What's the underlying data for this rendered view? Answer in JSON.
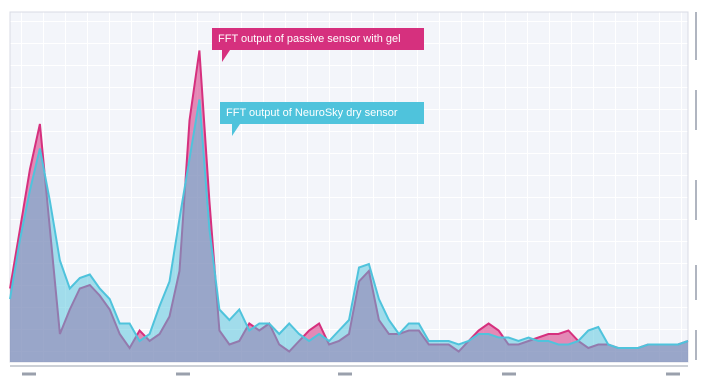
{
  "chart_data": {
    "type": "area",
    "categories": [
      null,
      null,
      null,
      null,
      null,
      null,
      null,
      null,
      null,
      null,
      null,
      null,
      null,
      null,
      null,
      null,
      null,
      null,
      null,
      null,
      null,
      null,
      null,
      null,
      null,
      null,
      null,
      null,
      null,
      null,
      null,
      null,
      null,
      null,
      null,
      null,
      null,
      null,
      null,
      null,
      null,
      null,
      null,
      null,
      null,
      null,
      null,
      null,
      null,
      null,
      null,
      null,
      null,
      null,
      null,
      null,
      null,
      null,
      null,
      null,
      null,
      null,
      null,
      null,
      null,
      null,
      null,
      null,
      null
    ],
    "series": [
      {
        "name": "FFT output of passive sensor with gel",
        "color": "#d6307e",
        "values": [
          21,
          38,
          55,
          68,
          38,
          8,
          15,
          21,
          22,
          19,
          15,
          8,
          4,
          9,
          6,
          8,
          13,
          26,
          69,
          89,
          46,
          9,
          5,
          6,
          11,
          9,
          11,
          5,
          3,
          6,
          9,
          11,
          5,
          6,
          8,
          23,
          26,
          12,
          8,
          8,
          9,
          9,
          5,
          5,
          5,
          3,
          6,
          9,
          11,
          9,
          5,
          5,
          6,
          7,
          8,
          8,
          9,
          6,
          4,
          5,
          5,
          4,
          4,
          4,
          5,
          5,
          5,
          5,
          6
        ]
      },
      {
        "name": "FFT output of NeuroSky dry sensor",
        "color": "#4fc3dc",
        "values": [
          18,
          35,
          49,
          61,
          46,
          29,
          21,
          24,
          25,
          21,
          18,
          11,
          11,
          6,
          8,
          16,
          23,
          41,
          58,
          75,
          38,
          15,
          12,
          15,
          9,
          11,
          11,
          8,
          11,
          8,
          6,
          8,
          6,
          9,
          12,
          27,
          28,
          18,
          12,
          8,
          11,
          11,
          6,
          6,
          6,
          5,
          6,
          8,
          8,
          7,
          7,
          6,
          7,
          6,
          6,
          5,
          5,
          6,
          9,
          10,
          5,
          4,
          4,
          4,
          5,
          5,
          5,
          5,
          6
        ]
      }
    ],
    "ylim": [
      0,
      100
    ],
    "grid": true
  }
}
